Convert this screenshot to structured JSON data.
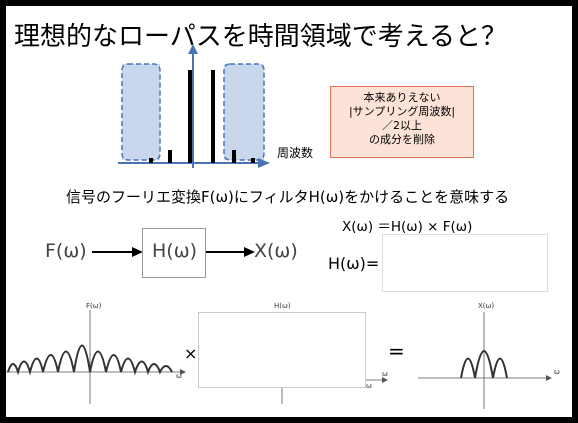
{
  "title": "理想的なローパスを時間領域で考えると？",
  "spectrum": {
    "freq_label": "周波数"
  },
  "note": {
    "line1": "本来ありえない",
    "line2": "|サンプリング周波数|",
    "line3": "／2以上",
    "line4": "の成分を削除"
  },
  "meaning": "信号のフーリエ変換F(ω)にフィルタH(ω)をかけることを意味する",
  "relation": "X(ω) ＝H(ω) × F(ω)",
  "block": {
    "input": "F(ω)",
    "filter": "H(ω)",
    "output": "X(ω)"
  },
  "h_equals": "H(ω)=",
  "plots": {
    "f_label": "F(ω)",
    "h_label": "H(ω)",
    "x_label": "X(ω)",
    "omega": "ω",
    "times": "×",
    "equals": "="
  }
}
